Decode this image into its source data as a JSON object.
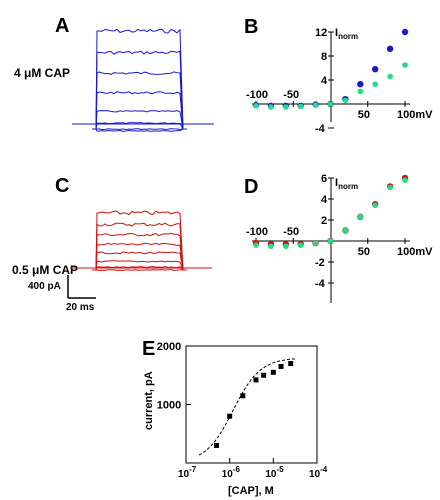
{
  "colors": {
    "blue": "#1a1acc",
    "red": "#cc1111",
    "green": "#22dd88",
    "black": "#000000"
  },
  "labels": {
    "panel_a": "A",
    "panel_b": "B",
    "panel_c": "C",
    "panel_d": "D",
    "panel_e": "E",
    "cond_a": "4 μM CAP",
    "cond_c": "0.5 μM CAP",
    "scale_current": "400 pA",
    "scale_time": "20 ms",
    "inorm_b": "I",
    "inorm_b_sub": "norm",
    "inorm_d": "I",
    "inorm_d_sub": "norm"
  },
  "chart_data": [
    {
      "panel": "A",
      "type": "line",
      "description_units": "current traces, 4 μM CAP",
      "traces_relative_amplitude": [
        1.0,
        0.78,
        0.57,
        0.37,
        0.18,
        0.06,
        0.0,
        -0.02
      ],
      "color": "blue"
    },
    {
      "panel": "B",
      "type": "scatter",
      "xlabel": "mV",
      "ylabel": "I norm",
      "x_ticks": [
        "-100",
        "-50",
        "50",
        "100mV"
      ],
      "y_ticks": [
        "12",
        "8",
        "4",
        "-4"
      ],
      "xlim": [
        -100,
        100
      ],
      "ylim": [
        -4,
        12
      ],
      "series": [
        {
          "color": "blue",
          "x": [
            -100,
            -80,
            -60,
            -40,
            -20,
            0,
            20,
            40,
            60,
            80,
            100
          ],
          "y": [
            -0.2,
            -0.3,
            -0.3,
            -0.3,
            -0.1,
            0.0,
            0.8,
            3.3,
            5.8,
            9.2,
            12.0
          ]
        },
        {
          "color": "green",
          "x": [
            -100,
            -80,
            -60,
            -40,
            -20,
            0,
            20,
            40,
            60,
            80,
            100
          ],
          "y": [
            -0.3,
            -0.5,
            -0.5,
            -0.4,
            -0.2,
            0.0,
            0.6,
            2.1,
            3.3,
            4.6,
            6.5
          ]
        }
      ]
    },
    {
      "panel": "C",
      "type": "line",
      "description_units": "current traces, 0.5 μM CAP",
      "traces_relative_amplitude": [
        1.0,
        0.8,
        0.62,
        0.45,
        0.3,
        0.15,
        0.05,
        0.0
      ],
      "color": "red"
    },
    {
      "panel": "D",
      "type": "scatter",
      "xlabel": "mV",
      "ylabel": "I norm",
      "x_ticks": [
        "-100",
        "-50",
        "50",
        "100mV"
      ],
      "y_ticks": [
        "6",
        "4",
        "2",
        "-2",
        "-4"
      ],
      "xlim": [
        -100,
        100
      ],
      "ylim": [
        -4,
        6
      ],
      "series": [
        {
          "color": "red",
          "x": [
            -100,
            -80,
            -60,
            -40,
            -20,
            0,
            20,
            40,
            60,
            80,
            100
          ],
          "y": [
            -0.2,
            -0.3,
            -0.3,
            -0.3,
            -0.2,
            0.0,
            1.0,
            2.3,
            3.5,
            5.2,
            6.0
          ]
        },
        {
          "color": "green",
          "x": [
            -100,
            -80,
            -60,
            -40,
            -20,
            0,
            20,
            40,
            60,
            80,
            100
          ],
          "y": [
            -0.4,
            -0.5,
            -0.5,
            -0.4,
            -0.2,
            0.0,
            1.0,
            2.3,
            3.4,
            5.1,
            5.8
          ]
        }
      ]
    },
    {
      "panel": "E",
      "type": "scatter",
      "xlabel": "[CAP], M",
      "ylabel": "current, pA",
      "x_scale": "log",
      "x_ticks": [
        "10-7",
        "10-6",
        "10-5",
        "10-4"
      ],
      "y_ticks": [
        "2000",
        "1000"
      ],
      "xlim": [
        1e-07,
        0.0001
      ],
      "ylim": [
        0,
        2000
      ],
      "points": {
        "x": [
          5e-07,
          1e-06,
          2e-06,
          4e-06,
          6e-06,
          1e-05,
          1.5e-05,
          2.5e-05
        ],
        "y": [
          300,
          800,
          1150,
          1420,
          1500,
          1550,
          1650,
          1700
        ]
      },
      "fit_curve": "dashed"
    }
  ]
}
